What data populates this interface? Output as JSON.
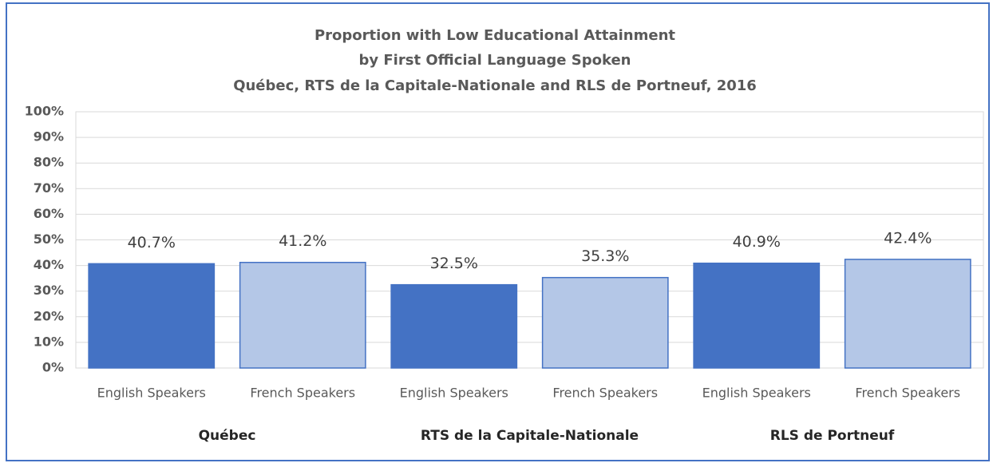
{
  "chart_data": {
    "type": "bar",
    "title": [
      "Proportion with Low Educational Attainment",
      "by First Official Language Spoken",
      "Québec, RTS de la Capitale-Nationale and RLS de Portneuf, 2016"
    ],
    "categories": [
      "English Speakers",
      "French Speakers",
      "English Speakers",
      "French Speakers",
      "English Speakers",
      "French Speakers"
    ],
    "groups": [
      "Québec",
      "RTS de la Capitale-Nationale",
      "RLS de Portneuf"
    ],
    "values": [
      40.7,
      41.2,
      32.5,
      35.3,
      40.9,
      42.4
    ],
    "value_labels": [
      "40.7%",
      "41.2%",
      "32.5%",
      "35.3%",
      "40.9%",
      "42.4%"
    ],
    "colors": [
      "#4472c4",
      "#b4c7e7",
      "#4472c4",
      "#b4c7e7",
      "#4472c4",
      "#b4c7e7"
    ],
    "ylim": [
      0,
      100
    ],
    "yticks": [
      {
        "value": 0,
        "label": "0%"
      },
      {
        "value": 10,
        "label": "10%"
      },
      {
        "value": 20,
        "label": "20%"
      },
      {
        "value": 30,
        "label": "30%"
      },
      {
        "value": 40,
        "label": "40%"
      },
      {
        "value": 50,
        "label": "50%"
      },
      {
        "value": 60,
        "label": "60%"
      },
      {
        "value": 70,
        "label": "70%"
      },
      {
        "value": 80,
        "label": "80%"
      },
      {
        "value": 90,
        "label": "90%"
      },
      {
        "value": 100,
        "label": "100%"
      }
    ],
    "grid": true
  }
}
